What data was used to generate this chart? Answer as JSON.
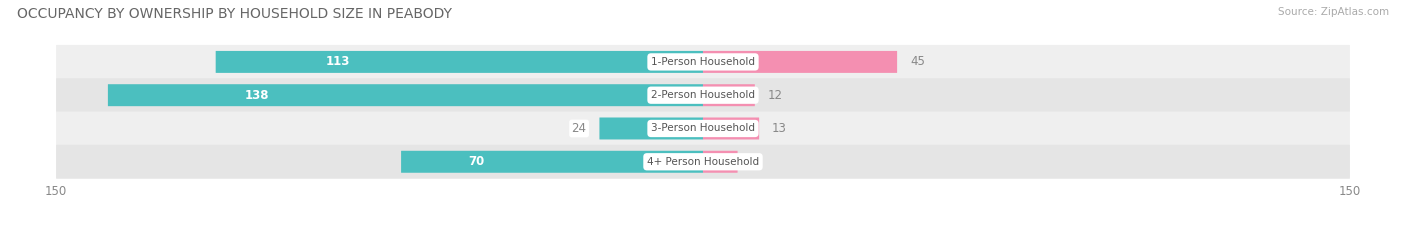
{
  "title": "OCCUPANCY BY OWNERSHIP BY HOUSEHOLD SIZE IN PEABODY",
  "source": "Source: ZipAtlas.com",
  "categories": [
    "1-Person Household",
    "2-Person Household",
    "3-Person Household",
    "4+ Person Household"
  ],
  "owner_values": [
    113,
    138,
    24,
    70
  ],
  "renter_values": [
    45,
    12,
    13,
    8
  ],
  "owner_color": "#4BBFBF",
  "renter_color": "#F48FB1",
  "axis_limit": 150,
  "row_bg_color_odd": "#EFEFEF",
  "row_bg_color_even": "#E5E5E5",
  "title_fontsize": 10,
  "source_fontsize": 7.5,
  "bar_label_fontsize": 8.5,
  "category_fontsize": 7.5,
  "axis_label_fontsize": 8.5,
  "legend_fontsize": 8.5,
  "bar_height": 0.62
}
